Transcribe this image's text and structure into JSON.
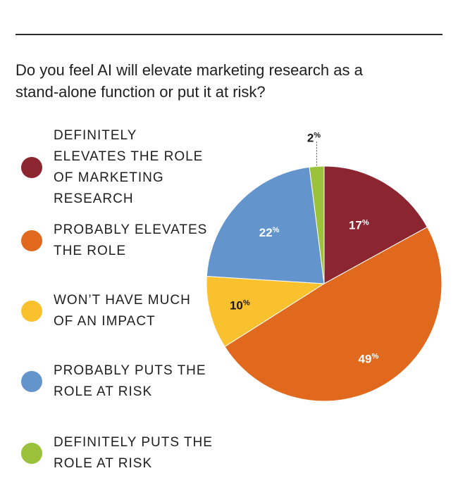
{
  "question": "Do you feel AI will elevate marketing research as a stand-alone function or put it at risk?",
  "chart_data": {
    "type": "pie",
    "title": "Do you feel AI will elevate marketing research as a stand-alone function or put it at risk?",
    "slices": [
      {
        "label": "DEFINITELY ELEVATES THE ROLE OF MARKETING RESEARCH",
        "value": 17,
        "color": "#8B2630"
      },
      {
        "label": "PROBABLY ELEVATES THE ROLE",
        "value": 49,
        "color": "#E0691E"
      },
      {
        "label": "WON'T HAVE MUCH OF AN IMPACT",
        "value": 10,
        "color": "#F9C12E"
      },
      {
        "label": "PROBABLY PUTS THE ROLE AT RISK",
        "value": 22,
        "color": "#6494CC"
      },
      {
        "label": "DEFINITELY PUTS THE ROLE AT RISK",
        "value": 2,
        "color": "#9CC13A"
      }
    ],
    "unit": "%"
  },
  "legend": [
    {
      "text": "DEFINITELY\nELEVATES THE ROLE\nOF MARKETING\nRESEARCH",
      "color": "#8B2630"
    },
    {
      "text": "PROBABLY ELEVATES\nTHE ROLE",
      "color": "#E0691E"
    },
    {
      "text": "WON’T HAVE MUCH\nOF AN IMPACT",
      "color": "#F9C12E"
    },
    {
      "text": "PROBABLY PUTS THE\nROLE AT RISK",
      "color": "#6494CC"
    },
    {
      "text": "DEFINITELY PUTS THE\nROLE AT RISK",
      "color": "#9CC13A"
    }
  ]
}
